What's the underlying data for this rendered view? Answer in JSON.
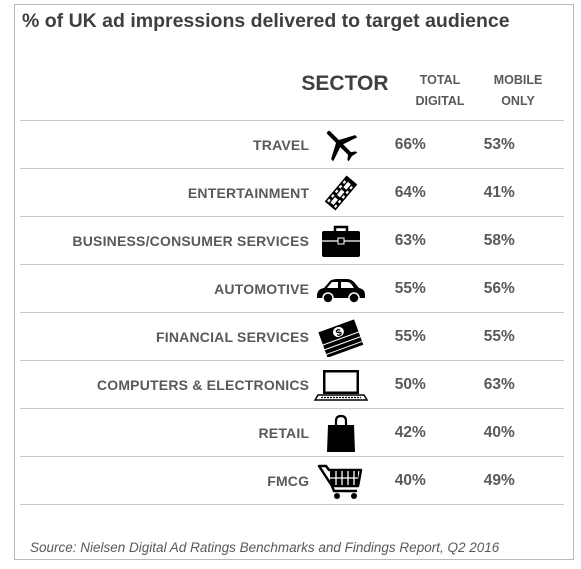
{
  "title": "% of UK ad impressions delivered to target audience",
  "headers": {
    "sector": "SECTOR",
    "total_line1": "TOTAL",
    "total_line2": "DIGITAL",
    "mobile_line1": "MOBILE",
    "mobile_line2": "ONLY"
  },
  "chart_data": {
    "type": "table",
    "title": "% of UK ad impressions delivered to target audience",
    "columns": [
      "SECTOR",
      "TOTAL DIGITAL",
      "MOBILE ONLY"
    ],
    "rows": [
      {
        "sector": "TRAVEL",
        "icon": "airplane-icon",
        "total": "66%",
        "mobile": "53%"
      },
      {
        "sector": "ENTERTAINMENT",
        "icon": "film-strip-icon",
        "total": "64%",
        "mobile": "41%"
      },
      {
        "sector": "BUSINESS/CONSUMER SERVICES",
        "icon": "briefcase-icon",
        "total": "63%",
        "mobile": "58%"
      },
      {
        "sector": "AUTOMOTIVE",
        "icon": "car-icon",
        "total": "55%",
        "mobile": "56%"
      },
      {
        "sector": "FINANCIAL SERVICES",
        "icon": "money-stack-icon",
        "total": "55%",
        "mobile": "55%"
      },
      {
        "sector": "COMPUTERS & ELECTRONICS",
        "icon": "laptop-icon",
        "total": "50%",
        "mobile": "63%"
      },
      {
        "sector": "RETAIL",
        "icon": "shopping-bag-icon",
        "total": "42%",
        "mobile": "40%"
      },
      {
        "sector": "FMCG",
        "icon": "shopping-cart-icon",
        "total": "40%",
        "mobile": "49%"
      }
    ]
  },
  "source": "Source: Nielsen Digital Ad Ratings Benchmarks and Findings Report, Q2 2016"
}
